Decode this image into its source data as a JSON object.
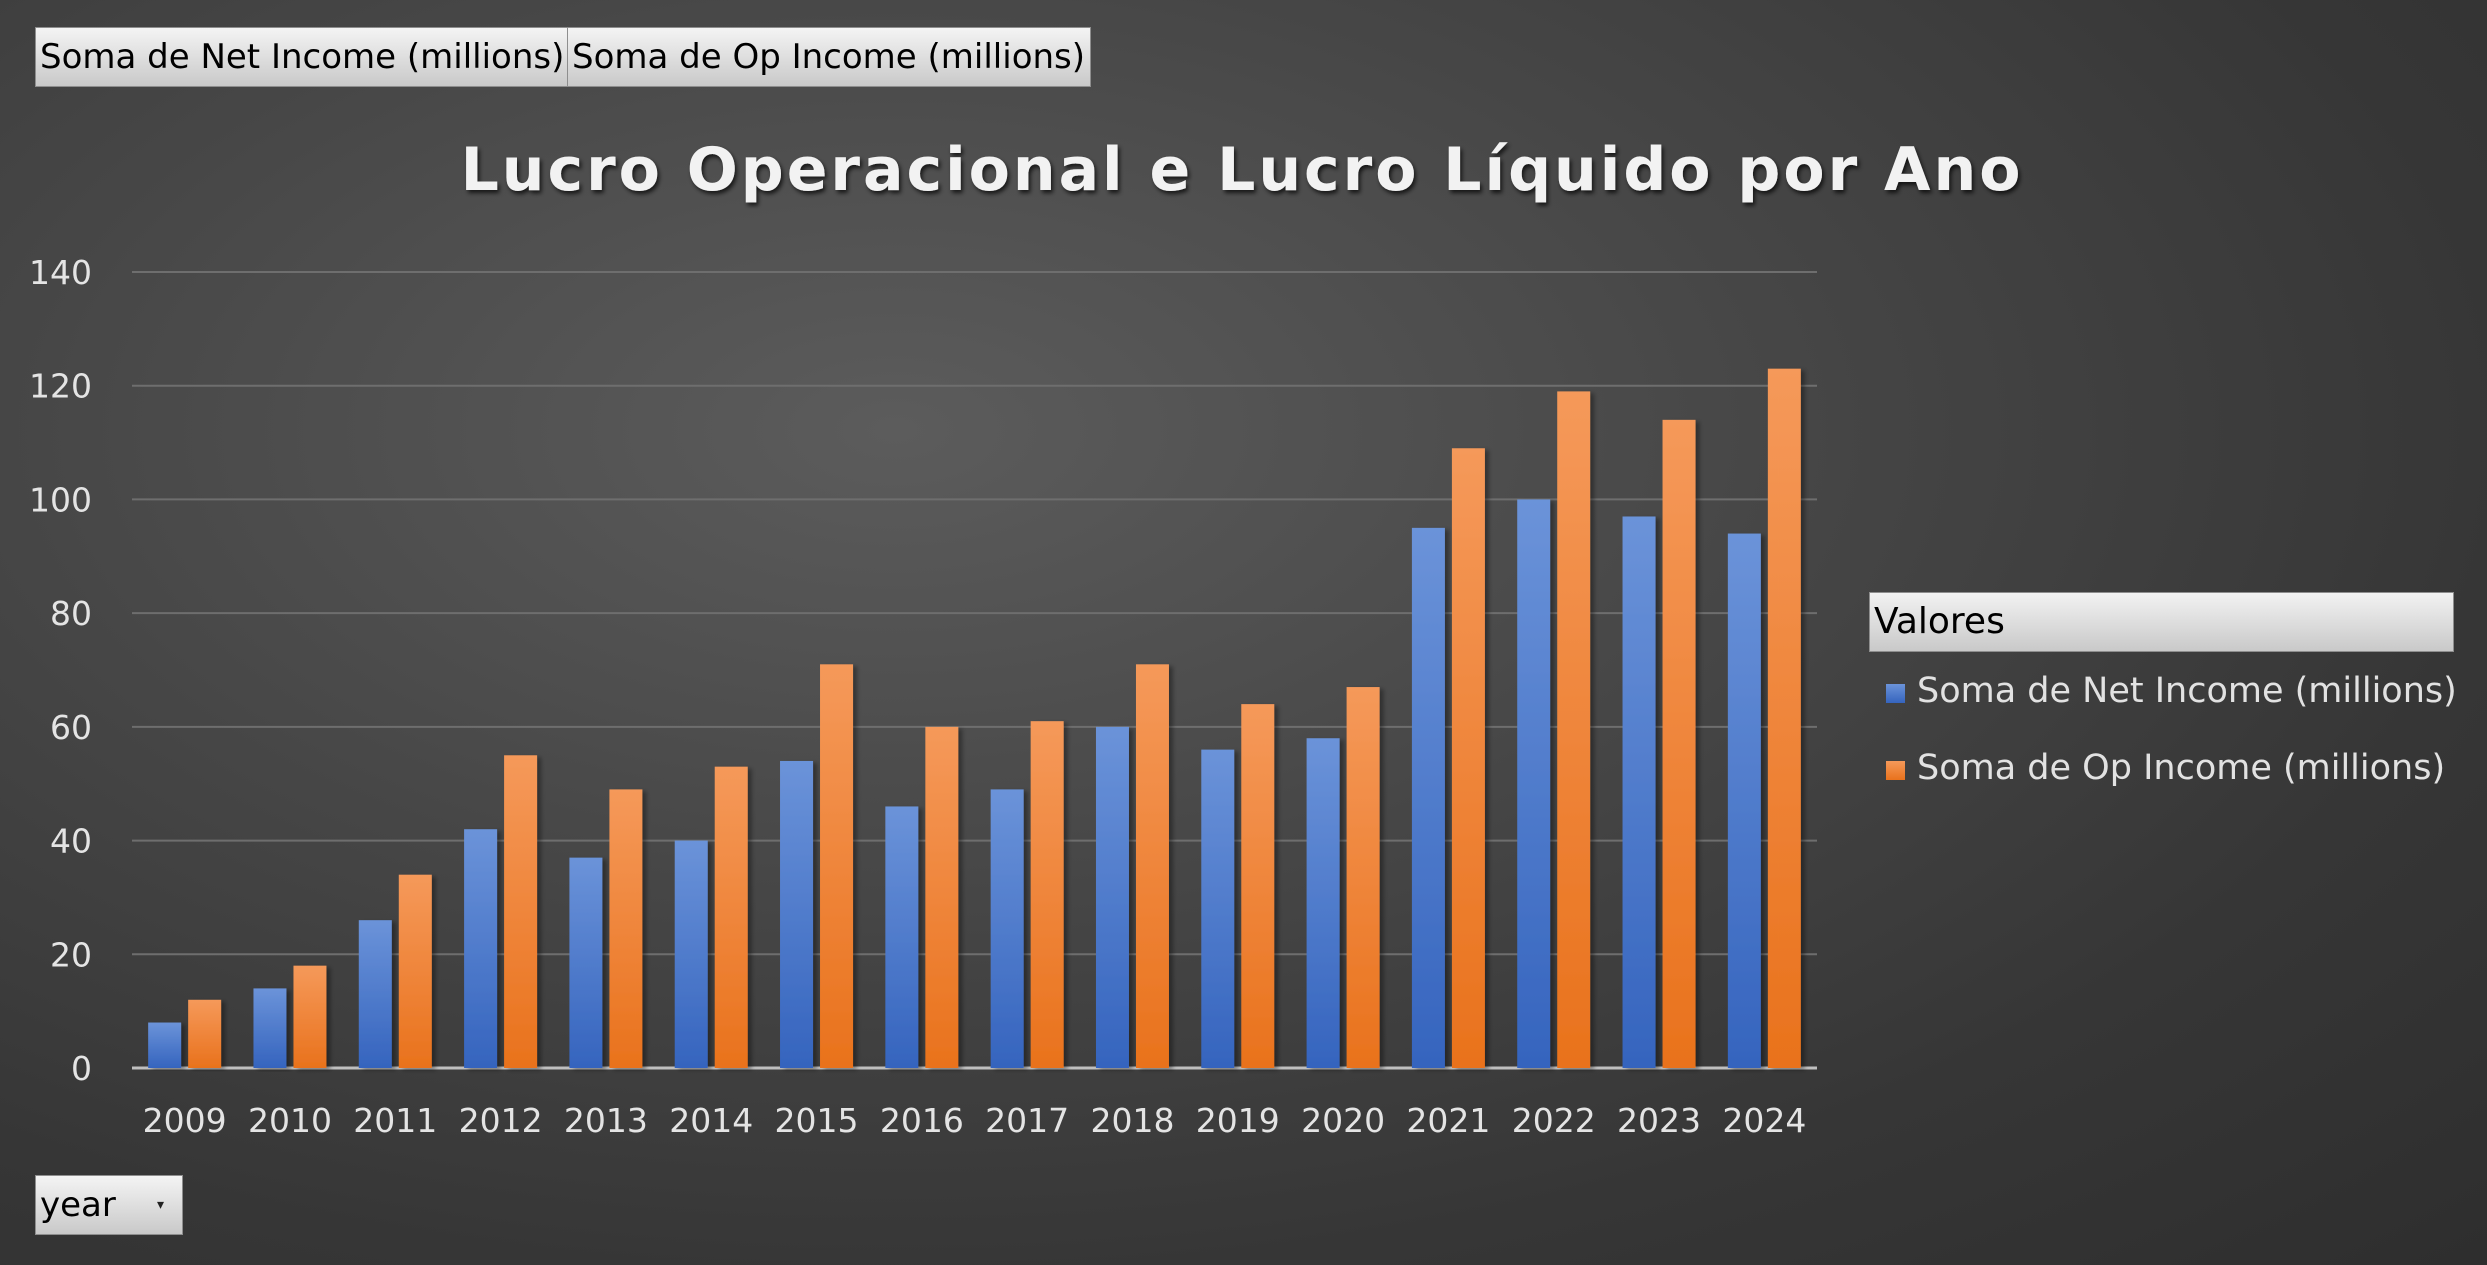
{
  "field_buttons": {
    "net": "Soma de Net Income (millions)",
    "op": "Soma de Op Income (millions)"
  },
  "axis_field_button": {
    "label": "year"
  },
  "legend": {
    "title": "Valores",
    "items": [
      "Soma de Net Income (millions)",
      "Soma de Op Income (millions)"
    ]
  },
  "colors": {
    "net_top": "#6b93d9",
    "net_bottom": "#3564be",
    "op_top": "#f5995a",
    "op_bottom": "#e9721c",
    "gridline": "#6e6e6e",
    "axis_line": "#bfbfbf",
    "tick_text": "#e4e4e4",
    "title_text": "#f2f2f2"
  },
  "chart_data": {
    "type": "bar",
    "title": "Lucro Operacional e Lucro Líquido por Ano",
    "categories": [
      "2009",
      "2010",
      "2011",
      "2012",
      "2013",
      "2014",
      "2015",
      "2016",
      "2017",
      "2018",
      "2019",
      "2020",
      "2021",
      "2022",
      "2023",
      "2024"
    ],
    "series": [
      {
        "name": "Soma de Net Income (millions)",
        "values": [
          8,
          14,
          26,
          42,
          37,
          40,
          54,
          46,
          49,
          60,
          56,
          58,
          95,
          100,
          97,
          94
        ]
      },
      {
        "name": "Soma de Op Income (millions)",
        "values": [
          12,
          18,
          34,
          55,
          49,
          53,
          71,
          60,
          61,
          71,
          64,
          67,
          109,
          119,
          114,
          123
        ]
      }
    ],
    "ylim": [
      0,
      140
    ],
    "yticks": [
      0,
      20,
      40,
      60,
      80,
      100,
      120,
      140
    ],
    "grid": true,
    "legend_position": "right"
  }
}
